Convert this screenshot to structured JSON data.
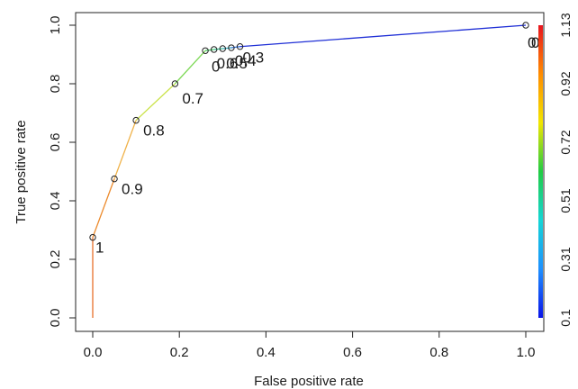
{
  "chart_data": {
    "type": "line",
    "xlabel": "False positive rate",
    "ylabel": "True positive rate",
    "xlim": [
      0,
      1
    ],
    "ylim": [
      0,
      1
    ],
    "x_ticks": [
      "0.0",
      "0.2",
      "0.4",
      "0.6",
      "0.8",
      "1.0"
    ],
    "y_ticks": [
      "0.0",
      "0.2",
      "0.4",
      "0.6",
      "0.8",
      "1.0"
    ],
    "grid": false,
    "points": [
      {
        "x": 0.0,
        "y": 0.0,
        "color": "#d73027"
      },
      {
        "x": 0.0,
        "y": 0.275,
        "label": "1",
        "color": "#e8712b"
      },
      {
        "x": 0.05,
        "y": 0.475,
        "label": "0.9",
        "color": "#ec8a2c"
      },
      {
        "x": 0.1,
        "y": 0.675,
        "label": "0.8",
        "color": "#f0b24a"
      },
      {
        "x": 0.19,
        "y": 0.8,
        "label": "0.7",
        "color": "#cbe34a"
      },
      {
        "x": 0.26,
        "y": 0.913,
        "label": "0",
        "color": "#7ed957"
      },
      {
        "x": 0.28,
        "y": 0.917,
        "label": "0.6",
        "color": "#44cc66"
      },
      {
        "x": 0.3,
        "y": 0.92,
        "label": "0.5",
        "color": "#33c08f"
      },
      {
        "x": 0.32,
        "y": 0.923,
        "label": "0.4",
        "color": "#2fa7b8"
      },
      {
        "x": 0.34,
        "y": 0.927,
        "label": "0.3",
        "color": "#2f6fd8"
      },
      {
        "x": 1.0,
        "y": 1.0,
        "label": "0",
        "color": "#1f2fd6"
      }
    ],
    "label_runs": [
      {
        "text": "00.65",
        "anchor_point": 5
      },
      {
        "text": "0.43",
        "anchor_point": 8
      },
      {
        "text": "0.2",
        "anchor_point": 9
      },
      {
        "text": "0",
        "anchor_point": 10
      },
      {
        "text": "0",
        "anchor_point": 10
      }
    ],
    "colorbar": {
      "labels": [
        "0.1",
        "0.31",
        "0.51",
        "0.72",
        "0.92",
        "1.13"
      ],
      "colors": [
        "#0a14e8",
        "#1e90ff",
        "#14d6d6",
        "#22cc44",
        "#f2e600",
        "#ff8c00",
        "#e8141e"
      ]
    }
  }
}
